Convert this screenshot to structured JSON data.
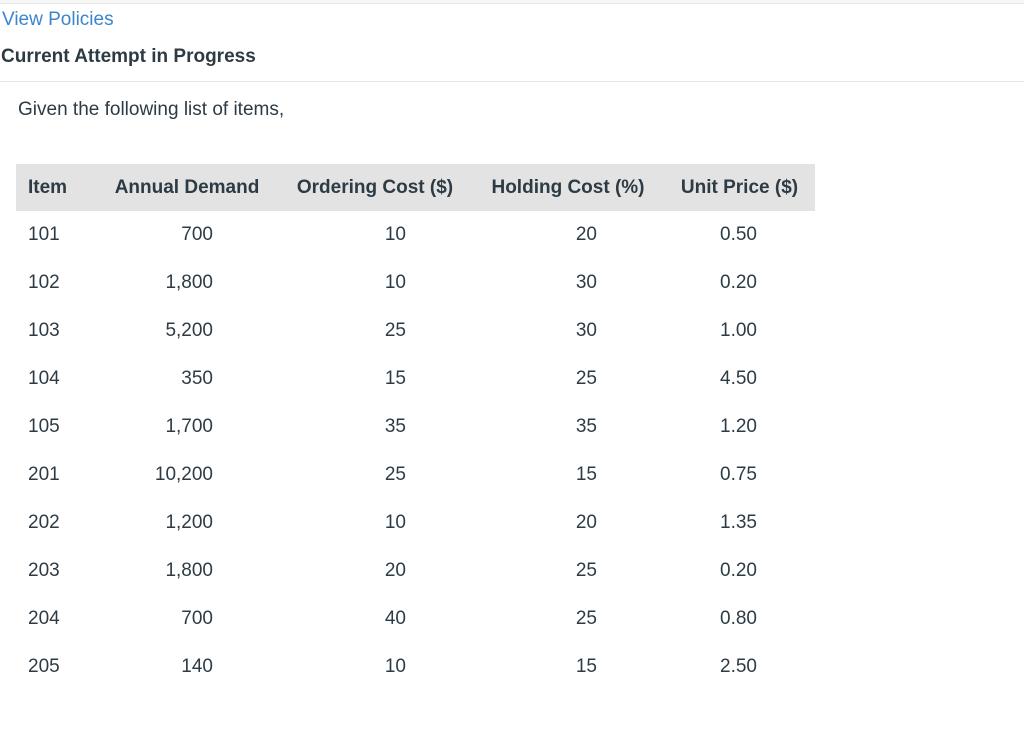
{
  "page": {
    "view_policies_link": "View Policies",
    "section_title": "Current Attempt in Progress",
    "question_intro": "Given the following list of items,"
  },
  "table": {
    "columns": [
      "Item",
      "Annual Demand",
      "Ordering Cost ($)",
      "Holding Cost (%)",
      "Unit Price ($)"
    ],
    "rows": [
      [
        "101",
        "700",
        "10",
        "20",
        "0.50"
      ],
      [
        "102",
        "1,800",
        "10",
        "30",
        "0.20"
      ],
      [
        "103",
        "5,200",
        "25",
        "30",
        "1.00"
      ],
      [
        "104",
        "350",
        "15",
        "25",
        "4.50"
      ],
      [
        "105",
        "1,700",
        "35",
        "35",
        "1.20"
      ],
      [
        "201",
        "10,200",
        "25",
        "15",
        "0.75"
      ],
      [
        "202",
        "1,200",
        "10",
        "20",
        "1.35"
      ],
      [
        "203",
        "1,800",
        "20",
        "25",
        "0.20"
      ],
      [
        "204",
        "700",
        "40",
        "25",
        "0.80"
      ],
      [
        "205",
        "140",
        "10",
        "15",
        "2.50"
      ]
    ]
  },
  "colors": {
    "link_blue": "#3c85cc",
    "text_dark": "#2d3b45",
    "table_header_bg": "#e3e3e3",
    "divider_gray": "#e8e8e8",
    "top_strip_bg": "#f7f7f7"
  }
}
